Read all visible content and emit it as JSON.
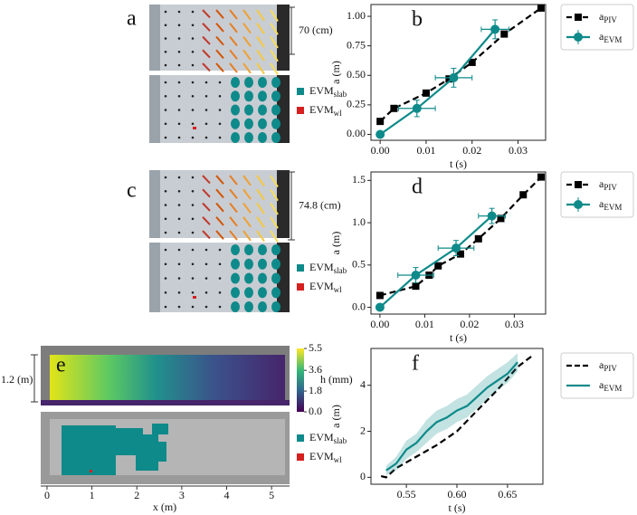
{
  "photos": [
    {
      "label": "a",
      "scale": "70 (cm)",
      "legend": [
        {
          "text": "EVM",
          "sub": "slab"
        },
        {
          "text": "EVM",
          "sub": "wl"
        }
      ]
    },
    {
      "label": "c",
      "scale": "74.8 (cm)",
      "legend": [
        {
          "text": "EVM",
          "sub": "slab"
        },
        {
          "text": "EVM",
          "sub": "wl"
        }
      ]
    },
    {
      "label": "e",
      "scale": "1.2 (m)",
      "legend": [
        {
          "text": "EVM",
          "sub": "slab"
        },
        {
          "text": "EVM",
          "sub": "wl"
        }
      ],
      "colorbar": {
        "label": "h (mm)",
        "lim": [
          0,
          5.5
        ],
        "ticks": [
          5.5,
          3.6,
          1.8,
          {
            "value": 0,
            "label": "0.0"
          }
        ]
      },
      "xaxis": {
        "label": "x (m)",
        "lim": [
          -0.14,
          5.4
        ],
        "ticks": [
          0,
          1,
          2,
          3,
          4,
          5
        ]
      }
    }
  ],
  "chart_data": [
    {
      "type": "line",
      "label": "b",
      "xlabel": "t (s)",
      "ylabel": "a (m)",
      "xlim": [
        -0.002,
        0.036
      ],
      "ylim": [
        -0.05,
        1.1
      ],
      "xticks": [
        {
          "value": 0,
          "label": "0.00"
        },
        0.01,
        0.02,
        0.03
      ],
      "yticks": [
        {
          "value": 0,
          "label": "0.00"
        },
        0.25,
        {
          "value": 0.5,
          "label": "0.50"
        },
        0.75,
        {
          "value": 1,
          "label": "1.00"
        }
      ],
      "series": [
        {
          "name": "a",
          "sub": "PIV",
          "color": "#000000",
          "dashed": true,
          "marker": "square",
          "x": [
            0,
            0.003,
            0.01,
            0.015,
            0.02,
            0.027,
            0.035
          ],
          "values": [
            0.11,
            0.22,
            0.35,
            0.47,
            0.61,
            0.85,
            1.07
          ]
        },
        {
          "name": "a",
          "sub": "EVM",
          "color": "#0e8a8a",
          "dashed": false,
          "marker": "circle",
          "x": [
            0,
            0.008,
            0.016,
            0.025
          ],
          "values": [
            0,
            0.22,
            0.48,
            0.89
          ],
          "xerr": [
            0,
            0.004,
            0.004,
            0.003
          ],
          "yerr": [
            0,
            0.07,
            0.08,
            0.08
          ]
        }
      ]
    },
    {
      "type": "line",
      "label": "d",
      "xlabel": "t (s)",
      "ylabel": "a (m)",
      "xlim": [
        -0.002,
        0.037
      ],
      "ylim": [
        -0.08,
        1.6
      ],
      "xticks": [
        {
          "value": 0,
          "label": "0.00"
        },
        0.01,
        0.02,
        0.03
      ],
      "yticks": [
        {
          "value": 0,
          "label": "0.0"
        },
        0.5,
        {
          "value": 1,
          "label": "1.0"
        },
        1.5
      ],
      "series": [
        {
          "name": "a",
          "sub": "PIV",
          "color": "#000000",
          "dashed": true,
          "marker": "square",
          "x": [
            0,
            0.008,
            0.011,
            0.013,
            0.018,
            0.022,
            0.027,
            0.032,
            0.036
          ],
          "values": [
            0.14,
            0.25,
            0.38,
            0.49,
            0.63,
            0.81,
            1.05,
            1.33,
            1.54
          ]
        },
        {
          "name": "a",
          "sub": "EVM",
          "color": "#0e8a8a",
          "dashed": false,
          "marker": "circle",
          "x": [
            0,
            0.008,
            0.017,
            0.025
          ],
          "values": [
            0,
            0.38,
            0.7,
            1.08
          ],
          "xerr": [
            0,
            0.004,
            0.004,
            0.003
          ],
          "yerr": [
            0,
            0.09,
            0.09,
            0.09
          ]
        }
      ]
    },
    {
      "type": "line",
      "label": "f",
      "xlabel": "t (s)",
      "ylabel": "a (m)",
      "xlim": [
        0.515,
        0.685
      ],
      "ylim": [
        -0.3,
        5.6
      ],
      "xticks": [
        0.55,
        {
          "value": 0.6,
          "label": "0.60"
        },
        0.65
      ],
      "yticks": [
        0,
        2,
        4
      ],
      "series": [
        {
          "name": "a",
          "sub": "PIV",
          "color": "#000000",
          "dashed": true,
          "marker": "none",
          "x": [
            0.525,
            0.53,
            0.54,
            0.56,
            0.58,
            0.6,
            0.62,
            0.64,
            0.66,
            0.675
          ],
          "values": [
            0.05,
            0,
            0.4,
            0.9,
            1.4,
            2.0,
            2.9,
            3.8,
            4.8,
            5.3
          ]
        },
        {
          "name": "a",
          "sub": "EVM",
          "color": "#0e8a8a",
          "dashed": false,
          "marker": "none",
          "x": [
            0.53,
            0.54,
            0.55,
            0.56,
            0.57,
            0.58,
            0.59,
            0.6,
            0.61,
            0.62,
            0.63,
            0.64,
            0.65,
            0.66
          ],
          "values": [
            0.3,
            0.6,
            1.2,
            1.5,
            2.0,
            2.4,
            2.6,
            2.9,
            3.1,
            3.5,
            3.9,
            4.2,
            4.5,
            5.0
          ],
          "lower": [
            0.1,
            0.3,
            0.8,
            1.1,
            1.5,
            1.9,
            2.1,
            2.4,
            2.6,
            3.0,
            3.4,
            3.8,
            4.1,
            4.6
          ],
          "upper": [
            0.5,
            0.9,
            1.6,
            1.9,
            2.5,
            2.9,
            3.1,
            3.4,
            3.6,
            4.0,
            4.4,
            4.7,
            5.0,
            5.4
          ]
        }
      ]
    }
  ]
}
